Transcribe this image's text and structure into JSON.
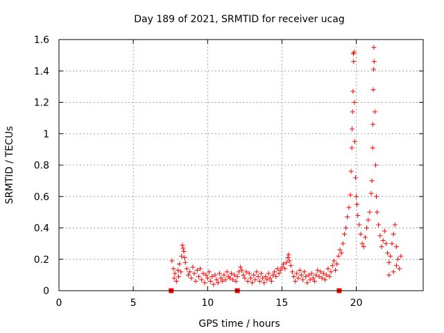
{
  "chart_data": {
    "type": "scatter",
    "title": "Day 189 of 2021, SRMTID for receiver ucag",
    "xlabel": "GPS time / hours",
    "ylabel": "SRMTID / TECUs",
    "xlim": [
      0,
      24.5
    ],
    "ylim": [
      0,
      1.6
    ],
    "xticks": [
      0,
      5,
      10,
      15,
      20
    ],
    "xtick_labels": [
      "0",
      "5",
      "10",
      "15",
      "20"
    ],
    "yticks": [
      0,
      0.2,
      0.4,
      0.6,
      0.8,
      1,
      1.2,
      1.4,
      1.6
    ],
    "ytick_labels": [
      "0",
      "0.2",
      "0.4",
      "0.6",
      "0.8",
      "1",
      "1.2",
      "1.4",
      "1.6"
    ],
    "grid": true,
    "marker": "plus",
    "color": "#ff0000",
    "series": [
      {
        "name": "SRMTID",
        "points": [
          [
            7.6,
            0.19
          ],
          [
            7.7,
            0.14
          ],
          [
            7.75,
            0.08
          ],
          [
            7.8,
            0.11
          ],
          [
            7.9,
            0.06
          ],
          [
            8.0,
            0.13
          ],
          [
            8.05,
            0.09
          ],
          [
            8.1,
            0.17
          ],
          [
            8.2,
            0.12
          ],
          [
            8.25,
            0.22
          ],
          [
            8.3,
            0.29
          ],
          [
            8.35,
            0.27
          ],
          [
            8.4,
            0.25
          ],
          [
            8.45,
            0.21
          ],
          [
            8.5,
            0.18
          ],
          [
            8.6,
            0.14
          ],
          [
            8.7,
            0.1
          ],
          [
            8.8,
            0.12
          ],
          [
            8.9,
            0.08
          ],
          [
            9.0,
            0.15
          ],
          [
            9.1,
            0.11
          ],
          [
            9.2,
            0.06
          ],
          [
            9.3,
            0.13
          ],
          [
            9.4,
            0.09
          ],
          [
            9.5,
            0.14
          ],
          [
            9.6,
            0.07
          ],
          [
            9.7,
            0.11
          ],
          [
            9.8,
            0.05
          ],
          [
            9.9,
            0.1
          ],
          [
            10.0,
            0.08
          ],
          [
            10.1,
            0.12
          ],
          [
            10.2,
            0.06
          ],
          [
            10.3,
            0.09
          ],
          [
            10.4,
            0.04
          ],
          [
            10.5,
            0.1
          ],
          [
            10.6,
            0.07
          ],
          [
            10.7,
            0.05
          ],
          [
            10.8,
            0.11
          ],
          [
            10.9,
            0.08
          ],
          [
            11.0,
            0.06
          ],
          [
            11.1,
            0.1
          ],
          [
            11.2,
            0.07
          ],
          [
            11.3,
            0.12
          ],
          [
            11.4,
            0.09
          ],
          [
            11.5,
            0.08
          ],
          [
            11.6,
            0.11
          ],
          [
            11.7,
            0.07
          ],
          [
            11.8,
            0.1
          ],
          [
            11.9,
            0.06
          ],
          [
            12.0,
            0.09
          ],
          [
            12.1,
            0.12
          ],
          [
            12.2,
            0.15
          ],
          [
            12.3,
            0.13
          ],
          [
            12.4,
            0.1
          ],
          [
            12.5,
            0.08
          ],
          [
            12.6,
            0.12
          ],
          [
            12.7,
            0.06
          ],
          [
            12.8,
            0.11
          ],
          [
            12.9,
            0.08
          ],
          [
            13.0,
            0.05
          ],
          [
            13.1,
            0.1
          ],
          [
            13.2,
            0.07
          ],
          [
            13.3,
            0.12
          ],
          [
            13.4,
            0.09
          ],
          [
            13.5,
            0.06
          ],
          [
            13.6,
            0.11
          ],
          [
            13.7,
            0.08
          ],
          [
            13.8,
            0.05
          ],
          [
            13.9,
            0.09
          ],
          [
            14.0,
            0.07
          ],
          [
            14.1,
            0.11
          ],
          [
            14.2,
            0.08
          ],
          [
            14.3,
            0.06
          ],
          [
            14.4,
            0.1
          ],
          [
            14.5,
            0.12
          ],
          [
            14.6,
            0.09
          ],
          [
            14.7,
            0.14
          ],
          [
            14.8,
            0.11
          ],
          [
            14.9,
            0.13
          ],
          [
            15.0,
            0.15
          ],
          [
            15.1,
            0.17
          ],
          [
            15.2,
            0.14
          ],
          [
            15.3,
            0.18
          ],
          [
            15.4,
            0.21
          ],
          [
            15.45,
            0.23
          ],
          [
            15.5,
            0.19
          ],
          [
            15.6,
            0.16
          ],
          [
            15.7,
            0.12
          ],
          [
            15.8,
            0.09
          ],
          [
            15.9,
            0.06
          ],
          [
            16.0,
            0.11
          ],
          [
            16.1,
            0.08
          ],
          [
            16.2,
            0.13
          ],
          [
            16.3,
            0.1
          ],
          [
            16.4,
            0.07
          ],
          [
            16.5,
            0.12
          ],
          [
            16.6,
            0.09
          ],
          [
            16.7,
            0.05
          ],
          [
            16.8,
            0.1
          ],
          [
            16.9,
            0.07
          ],
          [
            17.0,
            0.11
          ],
          [
            17.1,
            0.08
          ],
          [
            17.2,
            0.06
          ],
          [
            17.3,
            0.1
          ],
          [
            17.4,
            0.13
          ],
          [
            17.5,
            0.09
          ],
          [
            17.6,
            0.12
          ],
          [
            17.7,
            0.08
          ],
          [
            17.8,
            0.11
          ],
          [
            17.9,
            0.07
          ],
          [
            18.0,
            0.1
          ],
          [
            18.1,
            0.14
          ],
          [
            18.2,
            0.09
          ],
          [
            18.3,
            0.12
          ],
          [
            18.4,
            0.16
          ],
          [
            18.5,
            0.19
          ],
          [
            18.6,
            0.13
          ],
          [
            18.7,
            0.17
          ],
          [
            18.8,
            0.22
          ],
          [
            18.9,
            0.26
          ],
          [
            19.0,
            0.24
          ],
          [
            19.1,
            0.3
          ],
          [
            19.2,
            0.36
          ],
          [
            19.3,
            0.4
          ],
          [
            19.4,
            0.47
          ],
          [
            19.5,
            0.53
          ],
          [
            19.6,
            0.61
          ],
          [
            19.65,
            0.76
          ],
          [
            19.7,
            0.91
          ],
          [
            19.72,
            1.03
          ],
          [
            19.75,
            1.14
          ],
          [
            19.78,
            1.27
          ],
          [
            19.8,
            1.51
          ],
          [
            19.82,
            1.46
          ],
          [
            19.85,
            1.52
          ],
          [
            19.88,
            1.2
          ],
          [
            19.9,
            0.95
          ],
          [
            19.95,
            0.72
          ],
          [
            20.0,
            0.6
          ],
          [
            20.05,
            0.55
          ],
          [
            20.1,
            0.48
          ],
          [
            20.2,
            0.42
          ],
          [
            20.3,
            0.36
          ],
          [
            20.4,
            0.3
          ],
          [
            20.5,
            0.28
          ],
          [
            20.6,
            0.34
          ],
          [
            20.7,
            0.4
          ],
          [
            20.8,
            0.45
          ],
          [
            20.9,
            0.5
          ],
          [
            21.0,
            0.62
          ],
          [
            21.05,
            0.7
          ],
          [
            21.1,
            0.91
          ],
          [
            21.12,
            1.06
          ],
          [
            21.14,
            1.28
          ],
          [
            21.16,
            1.41
          ],
          [
            21.18,
            1.55
          ],
          [
            21.2,
            1.46
          ],
          [
            21.25,
            1.14
          ],
          [
            21.3,
            0.8
          ],
          [
            21.35,
            0.6
          ],
          [
            21.4,
            0.5
          ],
          [
            21.5,
            0.42
          ],
          [
            21.6,
            0.35
          ],
          [
            21.7,
            0.28
          ],
          [
            21.8,
            0.32
          ],
          [
            21.9,
            0.38
          ],
          [
            22.0,
            0.3
          ],
          [
            22.1,
            0.24
          ],
          [
            22.2,
            0.18
          ],
          [
            22.3,
            0.22
          ],
          [
            22.4,
            0.3
          ],
          [
            22.5,
            0.36
          ],
          [
            22.6,
            0.42
          ],
          [
            22.7,
            0.28
          ],
          [
            22.8,
            0.2
          ],
          [
            22.9,
            0.14
          ],
          [
            23.0,
            0.22
          ],
          [
            22.2,
            0.1
          ],
          [
            22.5,
            0.12
          ],
          [
            22.7,
            0.16
          ]
        ]
      }
    ],
    "gap_markers_x": [
      7.55,
      12.0,
      18.85
    ]
  }
}
